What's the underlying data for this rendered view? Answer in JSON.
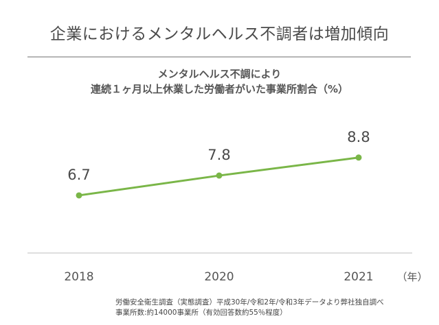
{
  "headline": "企業におけるメンタルヘルス不調者は増加傾向",
  "chart_data": {
    "type": "line",
    "title_lines": [
      "メンタルヘルス不調により",
      "連続１ヶ月以上休業した労働者がいた事業所割合（%）"
    ],
    "categories": [
      "2018",
      "2020",
      "2021"
    ],
    "values": [
      6.7,
      7.8,
      8.8
    ],
    "value_labels": [
      "6.7",
      "7.8",
      "8.8"
    ],
    "x_unit": "（年）",
    "ylim": [
      3.5,
      11
    ],
    "grid": false,
    "line_color": "#7ab648"
  },
  "source_lines": [
    "労働安全衛生調査（実態調査）平成30年/令和2年/令和3年データより弊社独自調べ",
    "事業所数:約14000事業所（有効回答数約55％程度）"
  ]
}
